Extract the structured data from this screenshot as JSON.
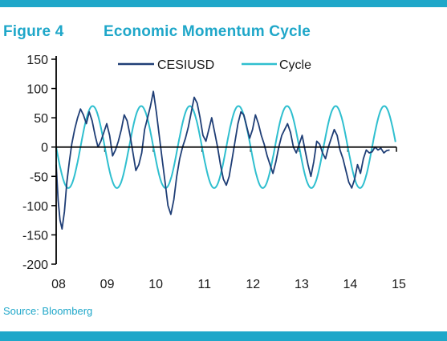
{
  "header": {
    "figure_label": "Figure 4",
    "title": "Economic Momentum Cycle"
  },
  "footer": {
    "source": "Source: Bloomberg"
  },
  "colors": {
    "accent": "#1fa7c9",
    "cesi": "#1f3e76",
    "cycle": "#2fbfcf",
    "axis": "#000000"
  },
  "chart_data": {
    "type": "line",
    "title": "Economic Momentum Cycle",
    "xlabel": "",
    "ylabel": "",
    "x_tick_labels": [
      "08",
      "09",
      "10",
      "11",
      "12",
      "13",
      "14",
      "15"
    ],
    "xlim": [
      2008.0,
      2015.0
    ],
    "ylim": [
      -200,
      150
    ],
    "y_ticks": [
      150,
      100,
      50,
      0,
      -50,
      -100,
      -150,
      -200
    ],
    "grid": false,
    "legend_position": "top-center",
    "series": [
      {
        "name": "CESIUSD",
        "x": [
          2008.0,
          2008.04,
          2008.08,
          2008.12,
          2008.17,
          2008.22,
          2008.27,
          2008.32,
          2008.38,
          2008.44,
          2008.5,
          2008.56,
          2008.62,
          2008.68,
          2008.74,
          2008.8,
          2008.86,
          2008.92,
          2008.98,
          2009.04,
          2009.1,
          2009.16,
          2009.22,
          2009.28,
          2009.34,
          2009.4,
          2009.46,
          2009.52,
          2009.58,
          2009.64,
          2009.7,
          2009.76,
          2009.82,
          2009.88,
          2009.94,
          2010.0,
          2010.06,
          2010.12,
          2010.18,
          2010.24,
          2010.3,
          2010.36,
          2010.42,
          2010.48,
          2010.54,
          2010.6,
          2010.66,
          2010.72,
          2010.78,
          2010.84,
          2010.9,
          2010.96,
          2011.02,
          2011.08,
          2011.14,
          2011.2,
          2011.26,
          2011.32,
          2011.38,
          2011.44,
          2011.5,
          2011.56,
          2011.62,
          2011.68,
          2011.74,
          2011.8,
          2011.86,
          2011.92,
          2011.98,
          2012.04,
          2012.1,
          2012.16,
          2012.22,
          2012.28,
          2012.34,
          2012.4,
          2012.46,
          2012.52,
          2012.58,
          2012.64,
          2012.7,
          2012.76,
          2012.82,
          2012.88,
          2012.94,
          2013.0,
          2013.06,
          2013.12,
          2013.18,
          2013.24,
          2013.3,
          2013.36,
          2013.42,
          2013.48,
          2013.54,
          2013.6,
          2013.66,
          2013.72,
          2013.78,
          2013.84,
          2013.9,
          2013.96,
          2014.02,
          2014.08,
          2014.14,
          2014.2,
          2014.26,
          2014.32,
          2014.38,
          2014.44,
          2014.5,
          2014.56,
          2014.62,
          2014.68,
          2014.74,
          2014.8,
          2014.86
        ],
        "values": [
          -30,
          -90,
          -125,
          -140,
          -110,
          -60,
          -25,
          5,
          30,
          50,
          65,
          55,
          40,
          60,
          45,
          20,
          0,
          10,
          25,
          40,
          20,
          -15,
          -5,
          10,
          30,
          55,
          45,
          20,
          -10,
          -40,
          -30,
          -10,
          30,
          50,
          70,
          95,
          60,
          20,
          -20,
          -60,
          -100,
          -115,
          -90,
          -50,
          -20,
          0,
          15,
          35,
          60,
          85,
          75,
          50,
          20,
          10,
          30,
          50,
          25,
          0,
          -30,
          -55,
          -65,
          -50,
          -20,
          10,
          40,
          60,
          55,
          35,
          15,
          30,
          55,
          40,
          20,
          5,
          -15,
          -30,
          -45,
          -25,
          0,
          20,
          30,
          40,
          25,
          0,
          -10,
          5,
          20,
          -5,
          -30,
          -50,
          -25,
          10,
          5,
          -10,
          -20,
          0,
          15,
          30,
          20,
          -5,
          -20,
          -40,
          -60,
          -70,
          -55,
          -30,
          -45,
          -20,
          -5,
          -10,
          -8,
          0,
          -5,
          -2,
          -10,
          -6,
          -5
        ]
      },
      {
        "name": "Cycle",
        "amplitude": 70,
        "period_years": 1.0,
        "phase_peak_x": 2008.75,
        "x_range": [
          2008.0,
          2015.0
        ]
      }
    ]
  }
}
